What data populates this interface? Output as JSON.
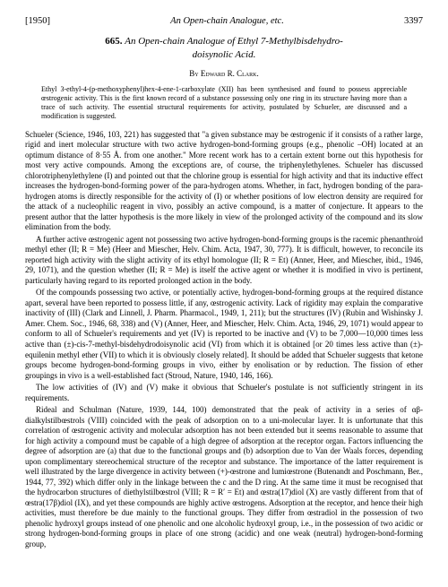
{
  "header": {
    "year": "[1950]",
    "short_title": "An Open-chain Analogue, etc.",
    "page_number": "3397"
  },
  "title": {
    "number": "665.",
    "text_line1": "An Open-chain Analogue of Ethyl 7-Methylbisdehydro-",
    "text_line2": "doisynolic Acid."
  },
  "byline": "By Edward R. Clark.",
  "abstract": "Ethyl 3-ethyl-4-(p-methoxyphenyl)hex-4-ene-1-carboxylate (XII) has been synthesised and found to possess appreciable œstrogenic activity. This is the first known record of a substance possessing only one ring in its structure having more than a trace of such activity. The essential structural requirements for activity, postulated by Schueler, are discussed and a modification is suggested.",
  "paragraphs": {
    "p1": "Schueler (Science, 1946, 103, 221) has suggested that \"a given substance may be œstrogenic if it consists of a rather large, rigid and inert molecular structure with two active hydrogen-bond-forming groups (e.g., phenolic –OH) located at an optimum distance of 8·55 Å. from one another.\" More recent work has to a certain extent borne out this hypothesis for most very active compounds. Among the exceptions are, of course, the triphenylethylenes. Schueler has discussed chlorotriphenylethylene (I) and pointed out that the chlorine group is essential for high activity and that its inductive effect increases the hydrogen-bond-forming power of the para-hydrogen atoms. Whether, in fact, hydrogen bonding of the para-hydrogen atoms is directly responsible for the activity of (I) or whether positions of low electron density are required for the attack of a nucleophilic reagent in vivo, possibly an active compound, is a matter of conjecture. It appears to the present author that the latter hypothesis is the more likely in view of the prolonged activity of the compound and its slow elimination from the body.",
    "p2": "A further active œstrogenic agent not possessing two active hydrogen-bond-forming groups is the racemic phenanthroid methyl ether (II; R = Me) (Heer and Miescher, Helv. Chim. Acta, 1947, 30, 777). It is difficult, however, to reconcile its reported high activity with the slight activity of its ethyl homologue (II; R = Et) (Anner, Heer, and Miescher, ibid., 1946, 29, 1071), and the question whether (II; R = Me) is itself the active agent or whether it is modified in vivo is pertinent, particularly having regard to its reported prolonged action in the body.",
    "p3": "Of the compounds possessing two active, or potentially active, hydrogen-bond-forming groups at the required distance apart, several have been reported to possess little, if any, œstrogenic activity. Lack of rigidity may explain the comparative inactivity of (III) (Clark and Linnell, J. Pharm. Pharmacol., 1949, 1, 211); but the structures (IV) (Rubin and Wishinsky J. Amer. Chem. Soc., 1946, 68, 338) and (V) (Anner, Heer, and Miescher, Helv. Chim. Acta, 1946, 29, 1071) would appear to conform to all of Schueler's requirements and yet (IV) is reported to be inactive and (V) to be 7,000—10,000 times less active than (±)-cis-7-methyl-bisdehydrodoisynolic acid (VI) from which it is obtained [or 20 times less active than (±)-equilenin methyl ether (VII) to which it is obviously closely related]. It should be added that Schueler suggests that ketone groups become hydrogen-bond-forming groups in vivo, either by enolisation or by reduction. The fission of ether groupings in vivo is a well-established fact (Stroud, Nature, 1940, 146, 166).",
    "p4": "The low activities of (IV) and (V) make it obvious that Schueler's postulate is not sufficiently stringent in its requirements.",
    "p5": "Rideal and Schulman (Nature, 1939, 144, 100) demonstrated that the peak of activity in a series of αβ-dialkylstilbœstrols (VIII) coincided with the peak of adsorption on to a uni-molecular layer. It is unfortunate that this correlation of œstrogenic activity and molecular adsorption has not been extended but it seems reasonable to assume that for high activity a compound must be capable of a high degree of adsorption at the receptor organ. Factors influencing the degree of adsorption are (a) that due to the functional groups and (b) adsorption due to Van der Waals forces, depending upon complimentary stereochemical structure of the receptor and substance. The importance of the latter requirement is well illustrated by the large divergence in activity between (+)-œstrone and lumiœstrone (Butenandt and Poschmann, Ber., 1944, 77, 392) which differ only in the linkage between the c and the D ring. At the same time it must be recognised that the hydrocarbon structures of diethylstilbœstrol (VIII; R = R′ = Et) and œstra(17)diol (X) are vastly different from that of œstra(17β)diol (IX), and yet these compounds are highly active œstrogens. Adsorption at the receptor, and hence their high activities, must therefore be due mainly to the functional groups. They differ from œstradiol in the possession of two phenolic hydroxyl groups instead of one phenolic and one alcoholic hydroxyl group, i.e., in the possession of two acidic or strong hydrogen-bond-forming groups in place of one strong (acidic) and one weak (neutral) hydrogen-bond-forming group,"
  }
}
